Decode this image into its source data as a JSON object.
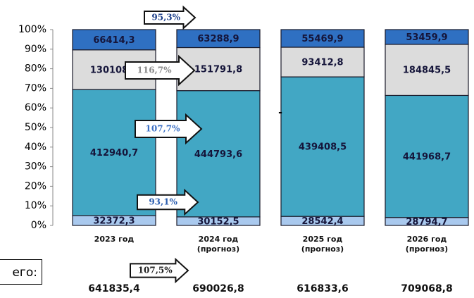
{
  "chart_data": {
    "type": "bar",
    "stacked": "percent",
    "categories": [
      "2023 год",
      "2024 год\n(прогноз)",
      "2025 год\n(прогноз)",
      "2026 год\n(прогноз)"
    ],
    "series": [
      {
        "color": "#a9c9ee",
        "values": [
          32372.3,
          30152.5,
          28542.4,
          28794.7
        ],
        "value_labels": [
          "32372,3",
          "30152,5",
          "28542,4",
          "28794,7"
        ]
      },
      {
        "color": "#42a7c4",
        "values": [
          412940.7,
          444793.6,
          439408.5,
          441968.7
        ],
        "value_labels": [
          "412940,7",
          "444793,6",
          "439408,5",
          "441968,7"
        ]
      },
      {
        "color": "#dcdcdc",
        "values": [
          130108.1,
          151791.8,
          93412.8,
          184845.5
        ],
        "value_labels": [
          "130108,1",
          "151791,8",
          "93412,8",
          "184845,5"
        ]
      },
      {
        "color": "#2f70c2",
        "values": [
          66414.3,
          63288.9,
          55469.9,
          53459.9
        ],
        "value_labels": [
          "66414,3",
          "63288,9",
          "55469,9",
          "53459,9"
        ]
      }
    ],
    "ylim": [
      0,
      100
    ],
    "yticks": [
      {
        "value": 0,
        "label": "0%"
      },
      {
        "value": 10,
        "label": "10%"
      },
      {
        "value": 20,
        "label": "20%"
      },
      {
        "value": 30,
        "label": "30%"
      },
      {
        "value": 40,
        "label": "40%"
      },
      {
        "value": 50,
        "label": "50%"
      },
      {
        "value": 60,
        "label": "60%"
      },
      {
        "value": 70,
        "label": "70%"
      },
      {
        "value": 80,
        "label": "80%"
      },
      {
        "value": 90,
        "label": "90%"
      },
      {
        "value": 100,
        "label": "100%"
      }
    ],
    "annotations": [
      "95,3%",
      "116,7%",
      "107,7%",
      "93,1%",
      "107,5%",
      "-"
    ],
    "total_caption": "его:",
    "totals": [
      "641835,4",
      "690026,8",
      "616833,6",
      "709068,8"
    ]
  }
}
